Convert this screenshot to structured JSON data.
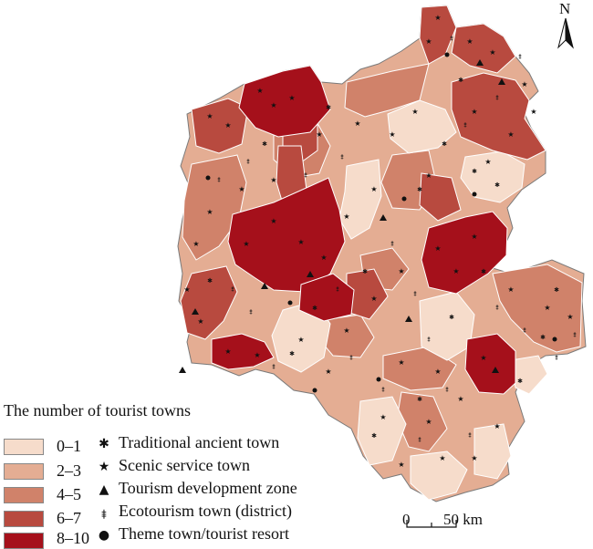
{
  "legend": {
    "title": "The number of tourist towns",
    "classes": [
      {
        "label": "0–1",
        "color": "#f6dccb"
      },
      {
        "label": "2–3",
        "color": "#e4ad93"
      },
      {
        "label": "4–5",
        "color": "#d0826a"
      },
      {
        "label": "6–7",
        "color": "#b84a3f"
      },
      {
        "label": "8–10",
        "color": "#a5101b"
      }
    ],
    "symbols": [
      {
        "label": "Traditional ancient town",
        "icon": "asterisk-icon",
        "glyph": "✱"
      },
      {
        "label": "Scenic service town",
        "icon": "star-icon",
        "glyph": "★"
      },
      {
        "label": "Tourism development zone",
        "icon": "triangle-icon",
        "glyph": "▲"
      },
      {
        "label": "Ecotourism town (district)",
        "icon": "pin-icon",
        "glyph": "⯒"
      },
      {
        "label": "Theme town/tourist resort",
        "icon": "dot-icon",
        "glyph": "●"
      }
    ]
  },
  "north_arrow": {
    "label": "N"
  },
  "scale_bar": {
    "start_label": "0",
    "end_label": "50 km"
  },
  "colors": {
    "boundary": "#ffffff",
    "outline": "#7a7a7a"
  }
}
